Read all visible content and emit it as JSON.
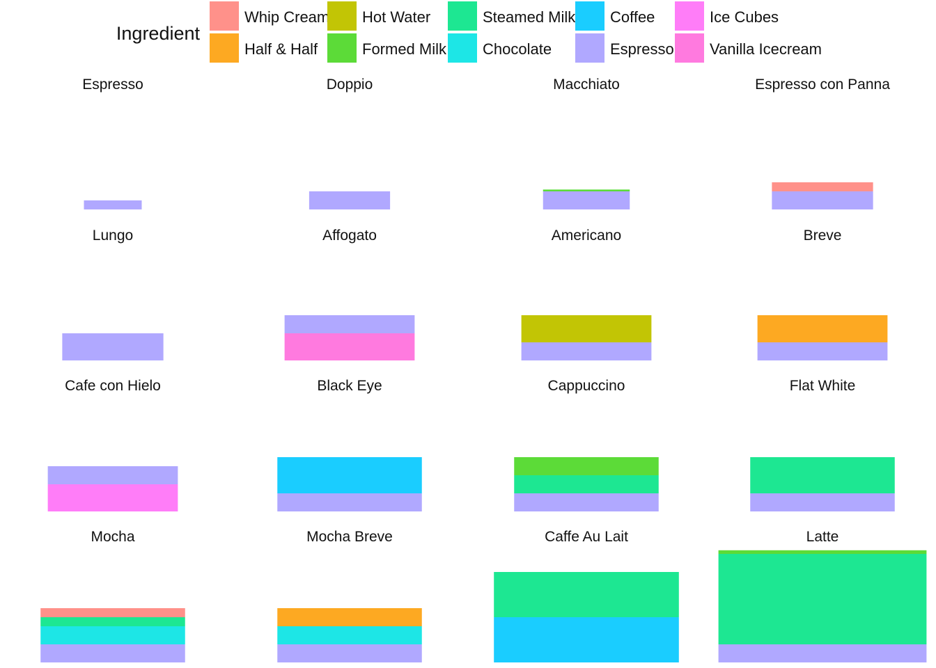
{
  "chart_data": {
    "type": "bar",
    "legend": {
      "title": "Ingredient",
      "placement": "top",
      "items": [
        {
          "name": "Whip Cream",
          "color": "#FF918A"
        },
        {
          "name": "Half & Half",
          "color": "#FDA922"
        },
        {
          "name": "Hot Water",
          "color": "#C2C505"
        },
        {
          "name": "Formed Milk",
          "color": "#5CDB38"
        },
        {
          "name": "Steamed Milk",
          "color": "#1DE792"
        },
        {
          "name": "Chocolate",
          "color": "#1DE6E6"
        },
        {
          "name": "Coffee",
          "color": "#1ACDFF"
        },
        {
          "name": "Espresso",
          "color": "#B0A8FF"
        },
        {
          "name": "Ice Cubes",
          "color": "#FF7DF8"
        },
        {
          "name": "Vanilla Icecream",
          "color": "#FF7ADF"
        }
      ]
    },
    "grid": false,
    "panels": [
      {
        "title": "Espresso",
        "cup_width": 1,
        "layers": [
          {
            "ingredient": "Espresso",
            "amount": 1
          }
        ]
      },
      {
        "title": "Doppio",
        "cup_width": 1.4,
        "layers": [
          {
            "ingredient": "Espresso",
            "amount": 2
          }
        ]
      },
      {
        "title": "Macchiato",
        "cup_width": 1.5,
        "layers": [
          {
            "ingredient": "Espresso",
            "amount": 2
          },
          {
            "ingredient": "Formed Milk",
            "amount": 0.2
          }
        ]
      },
      {
        "title": "Espresso con Panna",
        "cup_width": 1.75,
        "layers": [
          {
            "ingredient": "Espresso",
            "amount": 2
          },
          {
            "ingredient": "Whip Cream",
            "amount": 1
          }
        ]
      },
      {
        "title": "Lungo",
        "cup_width": 1.75,
        "layers": [
          {
            "ingredient": "Espresso",
            "amount": 3
          }
        ]
      },
      {
        "title": "Affogato",
        "cup_width": 2.25,
        "layers": [
          {
            "ingredient": "Vanilla Icecream",
            "amount": 3
          },
          {
            "ingredient": "Espresso",
            "amount": 2
          }
        ]
      },
      {
        "title": "Americano",
        "cup_width": 2.25,
        "layers": [
          {
            "ingredient": "Espresso",
            "amount": 2
          },
          {
            "ingredient": "Hot Water",
            "amount": 3
          }
        ]
      },
      {
        "title": "Breve",
        "cup_width": 2.25,
        "layers": [
          {
            "ingredient": "Espresso",
            "amount": 2
          },
          {
            "ingredient": "Half & Half",
            "amount": 3
          }
        ]
      },
      {
        "title": "Cafe con Hielo",
        "cup_width": 2.25,
        "layers": [
          {
            "ingredient": "Ice Cubes",
            "amount": 3
          },
          {
            "ingredient": "Espresso",
            "amount": 2
          }
        ]
      },
      {
        "title": "Black Eye",
        "cup_width": 2.5,
        "layers": [
          {
            "ingredient": "Espresso",
            "amount": 2
          },
          {
            "ingredient": "Coffee",
            "amount": 4
          }
        ]
      },
      {
        "title": "Cappuccino",
        "cup_width": 2.5,
        "layers": [
          {
            "ingredient": "Espresso",
            "amount": 2
          },
          {
            "ingredient": "Steamed Milk",
            "amount": 2
          },
          {
            "ingredient": "Formed Milk",
            "amount": 2
          }
        ]
      },
      {
        "title": "Flat White",
        "cup_width": 2.5,
        "layers": [
          {
            "ingredient": "Espresso",
            "amount": 2
          },
          {
            "ingredient": "Steamed Milk",
            "amount": 4
          }
        ]
      },
      {
        "title": "Mocha",
        "cup_width": 2.5,
        "layers": [
          {
            "ingredient": "Espresso",
            "amount": 2
          },
          {
            "ingredient": "Chocolate",
            "amount": 2
          },
          {
            "ingredient": "Steamed Milk",
            "amount": 1
          },
          {
            "ingredient": "Whip Cream",
            "amount": 1
          }
        ]
      },
      {
        "title": "Mocha Breve",
        "cup_width": 2.5,
        "layers": [
          {
            "ingredient": "Espresso",
            "amount": 2
          },
          {
            "ingredient": "Chocolate",
            "amount": 2
          },
          {
            "ingredient": "Half & Half",
            "amount": 2
          }
        ]
      },
      {
        "title": "Caffe Au Lait",
        "cup_width": 3.2,
        "layers": [
          {
            "ingredient": "Coffee",
            "amount": 5
          },
          {
            "ingredient": "Steamed Milk",
            "amount": 5
          }
        ]
      },
      {
        "title": "Latte",
        "cup_width": 3.6,
        "layers": [
          {
            "ingredient": "Espresso",
            "amount": 2
          },
          {
            "ingredient": "Steamed Milk",
            "amount": 10
          },
          {
            "ingredient": "Formed Milk",
            "amount": 0.4
          }
        ]
      }
    ]
  }
}
